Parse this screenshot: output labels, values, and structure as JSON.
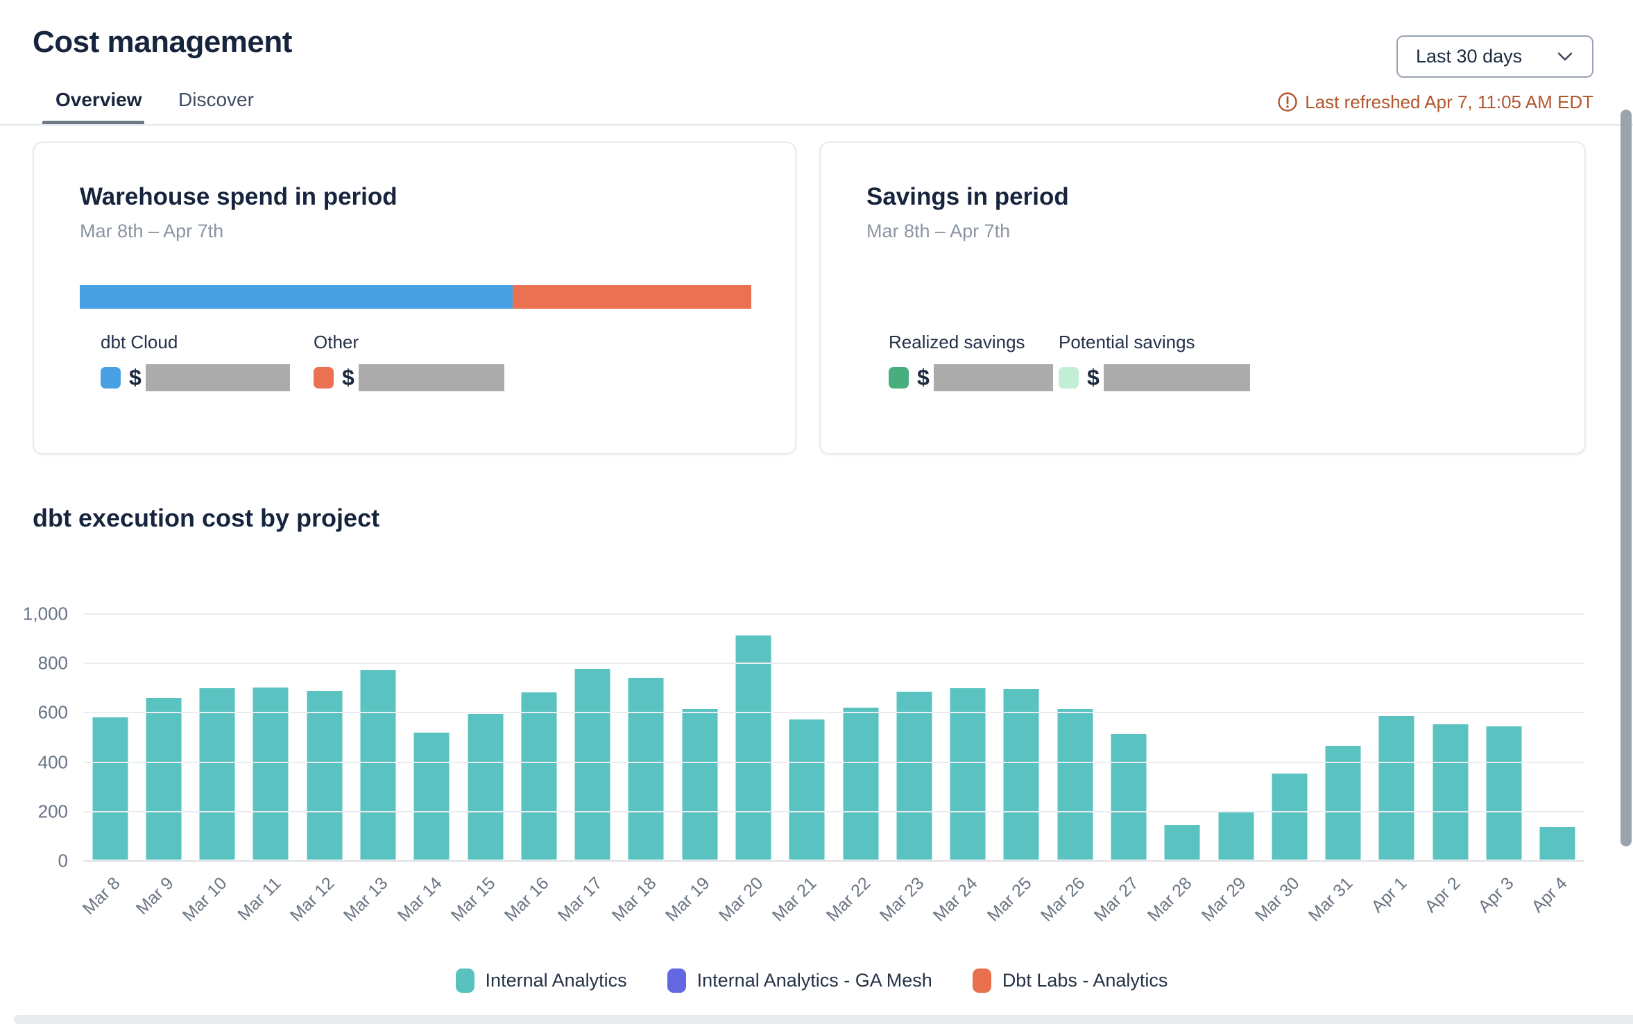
{
  "header": {
    "title": "Cost management",
    "period_selector": "Last 30 days",
    "last_refreshed": "Last refreshed Apr 7, 11:05 AM EDT"
  },
  "tabs": [
    {
      "label": "Overview",
      "active": true
    },
    {
      "label": "Discover",
      "active": false
    }
  ],
  "cards": {
    "warehouse_spend": {
      "title": "Warehouse spend in period",
      "subtitle": "Mar 8th – Apr 7th",
      "stacked_bar_segments": [
        {
          "name": "dbt Cloud",
          "color": "#49a0e3",
          "pct": 64.5
        },
        {
          "name": "Other",
          "color": "#ea7152",
          "pct": 35.5
        }
      ],
      "legend": [
        {
          "label": "dbt Cloud",
          "color": "#49a0e3",
          "value_prefix": "$",
          "value_redacted": true
        },
        {
          "label": "Other",
          "color": "#ea7152",
          "value_prefix": "$",
          "value_redacted": true
        }
      ]
    },
    "savings": {
      "title": "Savings in period",
      "subtitle": "Mar 8th – Apr 7th",
      "legend": [
        {
          "label": "Realized savings",
          "color": "#48ae7d",
          "value_prefix": "$",
          "value_redacted": true
        },
        {
          "label": "Potential savings",
          "color": "#c2eed6",
          "value_prefix": "$",
          "value_redacted": true
        }
      ]
    }
  },
  "chart_section": {
    "title": "dbt execution cost by project"
  },
  "chart_data": {
    "type": "bar",
    "title": "dbt execution cost by project",
    "categories": [
      "Mar 8",
      "Mar 9",
      "Mar 10",
      "Mar 11",
      "Mar 12",
      "Mar 13",
      "Mar 14",
      "Mar 15",
      "Mar 16",
      "Mar 17",
      "Mar 18",
      "Mar 19",
      "Mar 20",
      "Mar 21",
      "Mar 22",
      "Mar 23",
      "Mar 24",
      "Mar 25",
      "Mar 26",
      "Mar 27",
      "Mar 28",
      "Mar 29",
      "Mar 30",
      "Mar 31",
      "Apr 1",
      "Apr 2",
      "Apr 3",
      "Apr 4"
    ],
    "series": [
      {
        "name": "Internal Analytics",
        "color": "#5ac2c1",
        "values": [
          578,
          659,
          697,
          701,
          687,
          772,
          518,
          592,
          680,
          777,
          739,
          613,
          913,
          571,
          619,
          684,
          698,
          696,
          612,
          511,
          141,
          195,
          351,
          463,
          585,
          550,
          543,
          132
        ]
      }
    ],
    "legend": [
      {
        "label": "Internal Analytics",
        "color": "#5ac2be"
      },
      {
        "label": "Internal Analytics - GA Mesh",
        "color": "#6468e0"
      },
      {
        "label": "Dbt Labs - Analytics",
        "color": "#e9704f"
      }
    ],
    "legend_position": "bottom",
    "grid": true,
    "xlabel": "",
    "ylabel": "",
    "ylim": [
      0,
      1000
    ],
    "ytick_labels": [
      "1,000",
      "800",
      "600",
      "400",
      "200",
      "0"
    ],
    "ytick_values": [
      1000,
      800,
      600,
      400,
      200,
      0
    ]
  }
}
